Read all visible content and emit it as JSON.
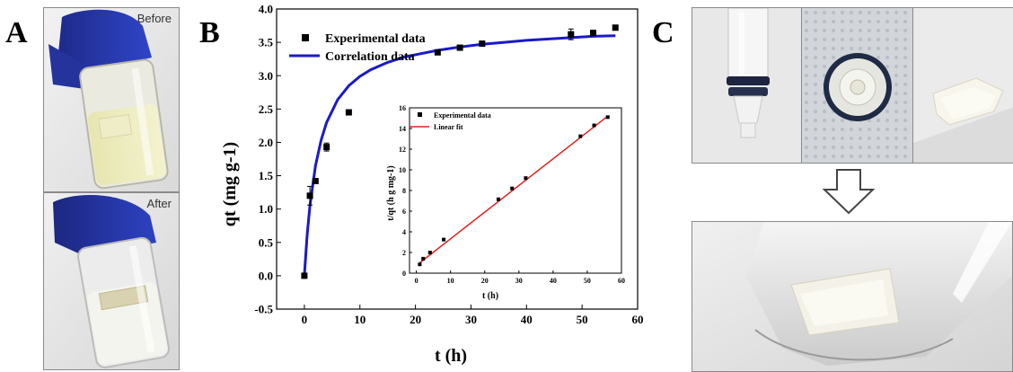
{
  "panels": {
    "a": "A",
    "b": "B",
    "c": "C"
  },
  "photos": {
    "before_label": "Before",
    "after_label": "After"
  },
  "chart_data": [
    {
      "type": "scatter",
      "name": "main",
      "xlabel": "t (h)",
      "ylabel": "qt (mg g-1)",
      "xlim": [
        -5,
        60
      ],
      "ylim": [
        -0.5,
        4.0
      ],
      "xticks": [
        0,
        10,
        20,
        30,
        40,
        50,
        60
      ],
      "yticks": [
        -0.5,
        0.0,
        0.5,
        1.0,
        1.5,
        2.0,
        2.5,
        3.0,
        3.5,
        4.0
      ],
      "legend": {
        "placement": "top-left",
        "entries": [
          "Experimental data",
          "Correlation data"
        ]
      },
      "series": [
        {
          "name": "Experimental data",
          "kind": "points",
          "color": "#000000",
          "x": [
            0,
            1,
            2,
            4,
            8,
            24,
            28,
            32,
            48,
            52,
            56
          ],
          "y": [
            0.0,
            1.2,
            1.42,
            1.93,
            2.45,
            3.35,
            3.42,
            3.48,
            3.62,
            3.64,
            3.72
          ],
          "error": [
            0,
            0.14,
            0,
            0.06,
            0,
            0,
            0,
            0,
            0.08,
            0.04,
            0.03
          ]
        },
        {
          "name": "Correlation data",
          "kind": "line",
          "color": "#1a1ac8",
          "x": [
            0,
            0.5,
            1,
            2,
            3,
            4,
            6,
            8,
            10,
            12,
            15,
            18,
            21,
            24,
            28,
            32,
            36,
            40,
            44,
            48,
            52,
            56
          ],
          "y": [
            0.0,
            0.61,
            1.05,
            1.65,
            2.03,
            2.3,
            2.64,
            2.85,
            2.99,
            3.09,
            3.2,
            3.28,
            3.33,
            3.38,
            3.43,
            3.47,
            3.5,
            3.53,
            3.55,
            3.57,
            3.59,
            3.6
          ]
        }
      ],
      "grid": false
    },
    {
      "type": "scatter",
      "name": "inset",
      "xlabel": "t (h)",
      "ylabel": "t/qt (h g mg-1)",
      "xlim": [
        -2,
        60
      ],
      "ylim": [
        0,
        16
      ],
      "xticks": [
        0,
        10,
        20,
        30,
        40,
        50,
        60
      ],
      "yticks": [
        0,
        2,
        4,
        6,
        8,
        10,
        12,
        14,
        16
      ],
      "legend": {
        "placement": "top-left",
        "entries": [
          "Experimental data",
          "Linear fit"
        ]
      },
      "series": [
        {
          "name": "Experimental data",
          "kind": "points",
          "color": "#000000",
          "x": [
            1,
            2,
            4,
            8,
            24,
            28,
            32,
            48,
            52,
            56
          ],
          "y": [
            0.85,
            1.4,
            2.0,
            3.25,
            7.15,
            8.2,
            9.2,
            13.25,
            14.3,
            15.1
          ]
        },
        {
          "name": "Linear fit",
          "kind": "line",
          "color": "#e02020",
          "x": [
            1,
            56
          ],
          "y": [
            1.0,
            15.2
          ]
        }
      ],
      "grid": false
    }
  ]
}
